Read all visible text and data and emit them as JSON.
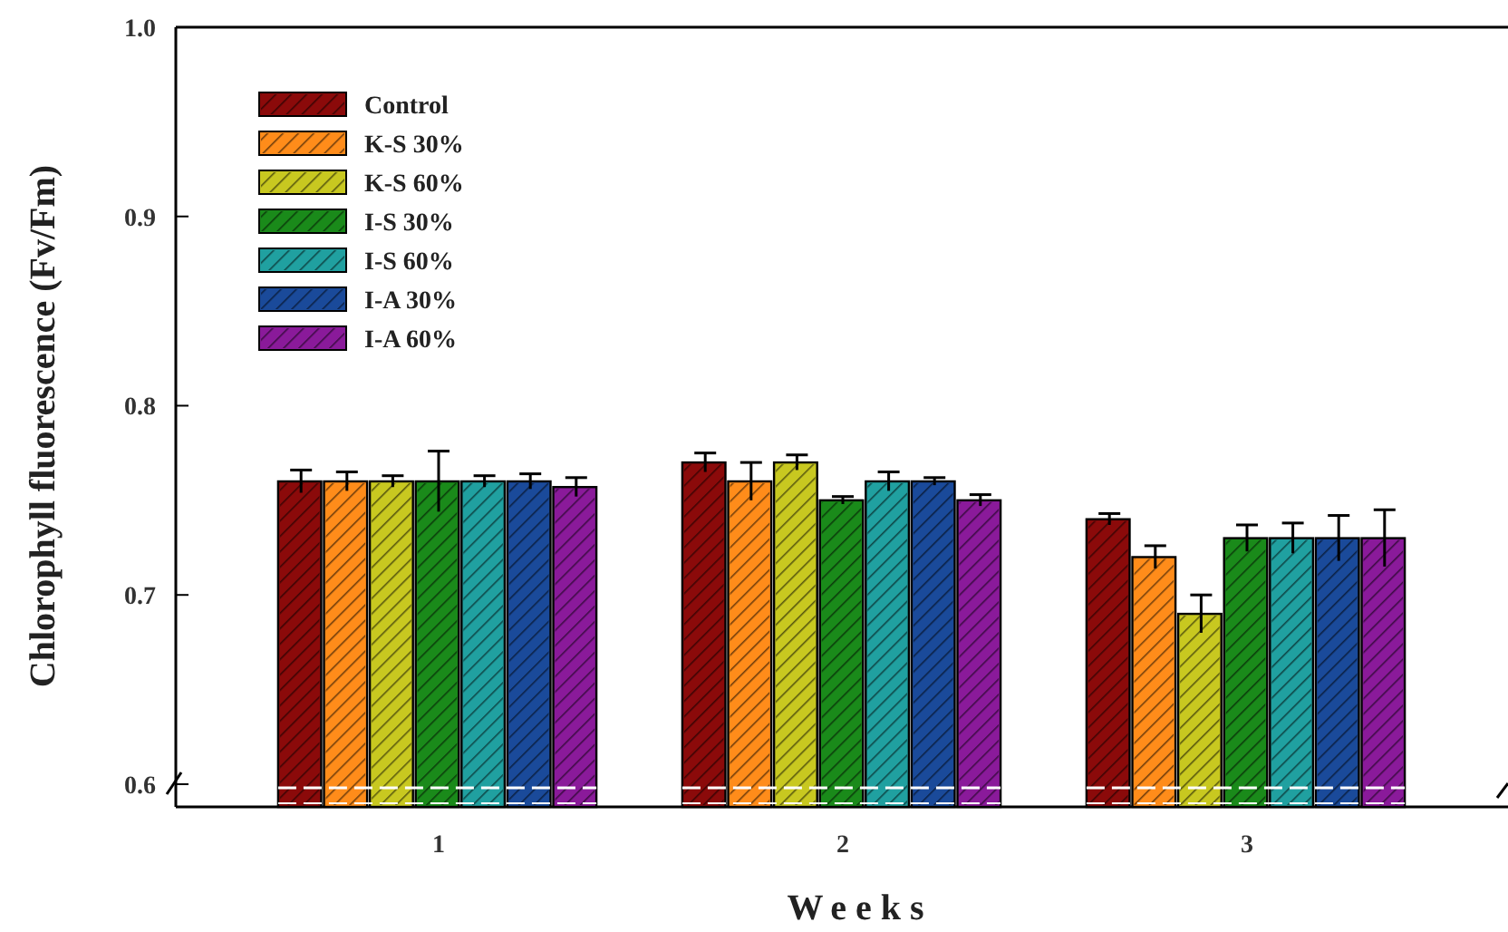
{
  "chart_data": {
    "type": "bar",
    "xlabel": "Weeks",
    "ylabel": "Chlorophyll fluorescence (Fv/Fm)",
    "categories": [
      "1",
      "2",
      "3"
    ],
    "ylim": [
      0.588,
      1.0
    ],
    "yticks": [
      0.6,
      0.7,
      0.8,
      0.9,
      {
        "value": 1.0,
        "label": "1.0"
      }
    ],
    "grid": false,
    "legend": "top left",
    "series": [
      {
        "name": "Control",
        "color": "#8b0a0a",
        "values": [
          0.76,
          0.77,
          0.74
        ],
        "errors": [
          0.006,
          0.005,
          0.003
        ]
      },
      {
        "name": "K-S 30%",
        "color": "#ff8c1a",
        "values": [
          0.76,
          0.76,
          0.72
        ],
        "errors": [
          0.005,
          0.01,
          0.006
        ]
      },
      {
        "name": "K-S 60%",
        "color": "#c8c820",
        "values": [
          0.76,
          0.77,
          0.69
        ],
        "errors": [
          0.003,
          0.004,
          0.01
        ]
      },
      {
        "name": "I-S 30%",
        "color": "#1a8a1a",
        "values": [
          0.76,
          0.75,
          0.73
        ],
        "errors": [
          0.016,
          0.002,
          0.007
        ]
      },
      {
        "name": "I-S 60%",
        "color": "#20a0a0",
        "values": [
          0.76,
          0.76,
          0.73
        ],
        "errors": [
          0.003,
          0.005,
          0.008
        ]
      },
      {
        "name": "I-A 30%",
        "color": "#1a4a9a",
        "values": [
          0.76,
          0.76,
          0.73
        ],
        "errors": [
          0.004,
          0.002,
          0.012
        ]
      },
      {
        "name": "I-A 60%",
        "color": "#8a1a9a",
        "values": [
          0.757,
          0.75,
          0.73
        ],
        "errors": [
          0.005,
          0.003,
          0.015
        ]
      }
    ]
  }
}
